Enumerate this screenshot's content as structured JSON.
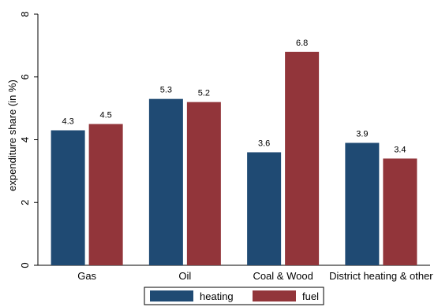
{
  "chart_data": {
    "type": "bar",
    "categories": [
      "Gas",
      "Oil",
      "Coal & Wood",
      "District heating & other"
    ],
    "series": [
      {
        "name": "heating",
        "values": [
          4.3,
          5.3,
          3.6,
          3.9
        ],
        "color": "#1f4a73"
      },
      {
        "name": "fuel",
        "values": [
          4.5,
          5.2,
          6.8,
          3.4
        ],
        "color": "#92353a"
      }
    ],
    "data_labels": [
      [
        "4.3",
        "5.3",
        "3.6",
        "3.9"
      ],
      [
        "4.5",
        "5.2",
        "6.8",
        "3.4"
      ]
    ],
    "ylabel": "expenditure share (in %)",
    "ylim": [
      0,
      8
    ],
    "yticks": [
      0,
      2,
      4,
      6,
      8
    ],
    "ytick_labels": [
      "0",
      "2",
      "4",
      "6",
      "8"
    ],
    "grid": false,
    "legend_position": "bottom"
  }
}
